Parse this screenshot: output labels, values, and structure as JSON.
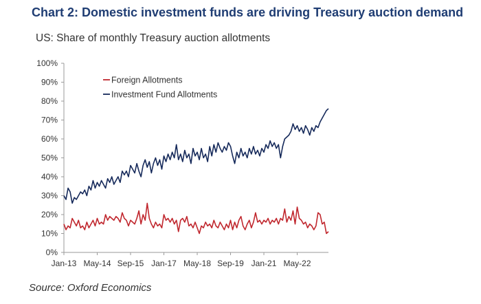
{
  "header": {
    "title": "Chart 2: Domestic investment funds are driving Treasury auction demand",
    "subtitle": "US: Share of monthly Treasury auction allotments"
  },
  "footer": {
    "source": "Source: Oxford Economics"
  },
  "colors": {
    "foreign": "#c0262d",
    "fund": "#15295a",
    "title": "#1f3d73"
  },
  "chart_data": {
    "type": "line",
    "title": "Chart 2: Domestic investment funds are driving Treasury auction demand",
    "subtitle": "US: Share of monthly Treasury auction allotments",
    "xlabel": "",
    "ylabel": "",
    "ylim": [
      0,
      100
    ],
    "y_ticks": [
      "0%",
      "10%",
      "20%",
      "30%",
      "40%",
      "50%",
      "60%",
      "70%",
      "80%",
      "90%",
      "100%"
    ],
    "x_ticks": [
      "Jan-13",
      "May-14",
      "Sep-15",
      "Jan-17",
      "May-18",
      "Sep-19",
      "Jan-21",
      "May-22"
    ],
    "legend_position": "top-left",
    "grid": false,
    "series": [
      {
        "name": "Foreign Allotments",
        "color": "#c0262d",
        "points": [
          [
            "2013-01",
            15
          ],
          [
            "2013-02",
            12
          ],
          [
            "2013-03",
            14
          ],
          [
            "2013-04",
            13
          ],
          [
            "2013-05",
            18
          ],
          [
            "2013-06",
            16
          ],
          [
            "2013-07",
            14
          ],
          [
            "2013-08",
            17
          ],
          [
            "2013-09",
            13
          ],
          [
            "2013-10",
            14
          ],
          [
            "2013-11",
            12
          ],
          [
            "2013-12",
            16
          ],
          [
            "2014-01",
            13
          ],
          [
            "2014-02",
            15
          ],
          [
            "2014-03",
            17
          ],
          [
            "2014-04",
            14
          ],
          [
            "2014-05",
            18
          ],
          [
            "2014-06",
            15
          ],
          [
            "2014-07",
            16
          ],
          [
            "2014-08",
            15
          ],
          [
            "2014-09",
            20
          ],
          [
            "2014-10",
            17
          ],
          [
            "2014-11",
            19
          ],
          [
            "2014-12",
            18
          ],
          [
            "2015-01",
            17
          ],
          [
            "2015-02",
            19
          ],
          [
            "2015-03",
            18
          ],
          [
            "2015-04",
            16
          ],
          [
            "2015-05",
            21
          ],
          [
            "2015-06",
            18
          ],
          [
            "2015-07",
            17
          ],
          [
            "2015-08",
            14
          ],
          [
            "2015-09",
            17
          ],
          [
            "2015-10",
            16
          ],
          [
            "2015-11",
            15
          ],
          [
            "2015-12",
            18
          ],
          [
            "2016-01",
            22
          ],
          [
            "2016-02",
            15
          ],
          [
            "2016-03",
            20
          ],
          [
            "2016-04",
            17
          ],
          [
            "2016-05",
            26
          ],
          [
            "2016-06",
            18
          ],
          [
            "2016-07",
            15
          ],
          [
            "2016-08",
            13
          ],
          [
            "2016-09",
            16
          ],
          [
            "2016-10",
            14
          ],
          [
            "2016-11",
            15
          ],
          [
            "2016-12",
            13
          ],
          [
            "2017-01",
            20
          ],
          [
            "2017-02",
            17
          ],
          [
            "2017-03",
            18
          ],
          [
            "2017-04",
            16
          ],
          [
            "2017-05",
            18
          ],
          [
            "2017-06",
            15
          ],
          [
            "2017-07",
            17
          ],
          [
            "2017-08",
            11
          ],
          [
            "2017-09",
            17
          ],
          [
            "2017-10",
            18
          ],
          [
            "2017-11",
            16
          ],
          [
            "2017-12",
            19
          ],
          [
            "2018-01",
            14
          ],
          [
            "2018-02",
            15
          ],
          [
            "2018-03",
            13
          ],
          [
            "2018-04",
            16
          ],
          [
            "2018-05",
            13
          ],
          [
            "2018-06",
            10
          ],
          [
            "2018-07",
            14
          ],
          [
            "2018-08",
            13
          ],
          [
            "2018-09",
            16
          ],
          [
            "2018-10",
            14
          ],
          [
            "2018-11",
            15
          ],
          [
            "2018-12",
            13
          ],
          [
            "2019-01",
            17
          ],
          [
            "2019-02",
            14
          ],
          [
            "2019-03",
            13
          ],
          [
            "2019-04",
            16
          ],
          [
            "2019-05",
            14
          ],
          [
            "2019-06",
            12
          ],
          [
            "2019-07",
            15
          ],
          [
            "2019-08",
            13
          ],
          [
            "2019-09",
            17
          ],
          [
            "2019-10",
            12
          ],
          [
            "2019-11",
            16
          ],
          [
            "2019-12",
            13
          ],
          [
            "2020-01",
            17
          ],
          [
            "2020-02",
            19
          ],
          [
            "2020-03",
            14
          ],
          [
            "2020-04",
            12
          ],
          [
            "2020-05",
            15
          ],
          [
            "2020-06",
            17
          ],
          [
            "2020-07",
            13
          ],
          [
            "2020-08",
            16
          ],
          [
            "2020-09",
            21
          ],
          [
            "2020-10",
            16
          ],
          [
            "2020-11",
            17
          ],
          [
            "2020-12",
            15
          ],
          [
            "2021-01",
            17
          ],
          [
            "2021-02",
            16
          ],
          [
            "2021-03",
            18
          ],
          [
            "2021-04",
            15
          ],
          [
            "2021-05",
            17
          ],
          [
            "2021-06",
            16
          ],
          [
            "2021-07",
            18
          ],
          [
            "2021-08",
            15
          ],
          [
            "2021-09",
            18
          ],
          [
            "2021-10",
            17
          ],
          [
            "2021-11",
            23
          ],
          [
            "2021-12",
            16
          ],
          [
            "2022-01",
            19
          ],
          [
            "2022-02",
            17
          ],
          [
            "2022-03",
            22
          ],
          [
            "2022-04",
            15
          ],
          [
            "2022-05",
            24
          ],
          [
            "2022-06",
            18
          ],
          [
            "2022-07",
            17
          ],
          [
            "2022-08",
            15
          ],
          [
            "2022-09",
            16
          ],
          [
            "2022-10",
            13
          ],
          [
            "2022-11",
            15
          ],
          [
            "2022-12",
            14
          ],
          [
            "2023-01",
            12
          ],
          [
            "2023-02",
            14
          ],
          [
            "2023-03",
            21
          ],
          [
            "2023-04",
            20
          ],
          [
            "2023-05",
            15
          ],
          [
            "2023-06",
            16
          ],
          [
            "2023-07",
            10
          ],
          [
            "2023-08",
            11
          ]
        ]
      },
      {
        "name": "Investment Fund Allotments",
        "color": "#15295a",
        "points": [
          [
            "2013-01",
            30
          ],
          [
            "2013-02",
            28
          ],
          [
            "2013-03",
            34
          ],
          [
            "2013-04",
            32
          ],
          [
            "2013-05",
            26
          ],
          [
            "2013-06",
            29
          ],
          [
            "2013-07",
            28
          ],
          [
            "2013-08",
            30
          ],
          [
            "2013-09",
            32
          ],
          [
            "2013-10",
            31
          ],
          [
            "2013-11",
            33
          ],
          [
            "2013-12",
            30
          ],
          [
            "2014-01",
            35
          ],
          [
            "2014-02",
            33
          ],
          [
            "2014-03",
            38
          ],
          [
            "2014-04",
            34
          ],
          [
            "2014-05",
            37
          ],
          [
            "2014-06",
            35
          ],
          [
            "2014-07",
            38
          ],
          [
            "2014-08",
            36
          ],
          [
            "2014-09",
            34
          ],
          [
            "2014-10",
            39
          ],
          [
            "2014-11",
            37
          ],
          [
            "2014-12",
            40
          ],
          [
            "2015-01",
            36
          ],
          [
            "2015-02",
            38
          ],
          [
            "2015-03",
            40
          ],
          [
            "2015-04",
            37
          ],
          [
            "2015-05",
            43
          ],
          [
            "2015-06",
            41
          ],
          [
            "2015-07",
            43
          ],
          [
            "2015-08",
            40
          ],
          [
            "2015-09",
            46
          ],
          [
            "2015-10",
            44
          ],
          [
            "2015-11",
            42
          ],
          [
            "2015-12",
            47
          ],
          [
            "2016-01",
            43
          ],
          [
            "2016-02",
            40
          ],
          [
            "2016-03",
            46
          ],
          [
            "2016-04",
            49
          ],
          [
            "2016-05",
            45
          ],
          [
            "2016-06",
            48
          ],
          [
            "2016-07",
            42
          ],
          [
            "2016-08",
            47
          ],
          [
            "2016-09",
            50
          ],
          [
            "2016-10",
            46
          ],
          [
            "2016-11",
            49
          ],
          [
            "2016-12",
            44
          ],
          [
            "2017-01",
            51
          ],
          [
            "2017-02",
            48
          ],
          [
            "2017-03",
            52
          ],
          [
            "2017-04",
            49
          ],
          [
            "2017-05",
            53
          ],
          [
            "2017-06",
            50
          ],
          [
            "2017-07",
            57
          ],
          [
            "2017-08",
            49
          ],
          [
            "2017-09",
            52
          ],
          [
            "2017-10",
            48
          ],
          [
            "2017-11",
            54
          ],
          [
            "2017-12",
            50
          ],
          [
            "2018-01",
            52
          ],
          [
            "2018-02",
            47
          ],
          [
            "2018-03",
            55
          ],
          [
            "2018-04",
            51
          ],
          [
            "2018-05",
            53
          ],
          [
            "2018-06",
            49
          ],
          [
            "2018-07",
            55
          ],
          [
            "2018-08",
            50
          ],
          [
            "2018-09",
            52
          ],
          [
            "2018-10",
            48
          ],
          [
            "2018-11",
            56
          ],
          [
            "2018-12",
            51
          ],
          [
            "2019-01",
            57
          ],
          [
            "2019-02",
            53
          ],
          [
            "2019-03",
            58
          ],
          [
            "2019-04",
            55
          ],
          [
            "2019-05",
            53
          ],
          [
            "2019-06",
            56
          ],
          [
            "2019-07",
            54
          ],
          [
            "2019-08",
            58
          ],
          [
            "2019-09",
            56
          ],
          [
            "2019-10",
            51
          ],
          [
            "2019-11",
            47
          ],
          [
            "2019-12",
            53
          ],
          [
            "2020-01",
            50
          ],
          [
            "2020-02",
            55
          ],
          [
            "2020-03",
            51
          ],
          [
            "2020-04",
            53
          ],
          [
            "2020-05",
            50
          ],
          [
            "2020-06",
            55
          ],
          [
            "2020-07",
            52
          ],
          [
            "2020-08",
            56
          ],
          [
            "2020-09",
            52
          ],
          [
            "2020-10",
            54
          ],
          [
            "2020-11",
            51
          ],
          [
            "2020-12",
            55
          ],
          [
            "2021-01",
            53
          ],
          [
            "2021-02",
            57
          ],
          [
            "2021-03",
            55
          ],
          [
            "2021-04",
            59
          ],
          [
            "2021-05",
            56
          ],
          [
            "2021-06",
            58
          ],
          [
            "2021-07",
            55
          ],
          [
            "2021-08",
            57
          ],
          [
            "2021-09",
            50
          ],
          [
            "2021-10",
            56
          ],
          [
            "2021-11",
            60
          ],
          [
            "2021-12",
            61
          ],
          [
            "2022-01",
            62
          ],
          [
            "2022-02",
            64
          ],
          [
            "2022-03",
            68
          ],
          [
            "2022-04",
            65
          ],
          [
            "2022-05",
            67
          ],
          [
            "2022-06",
            64
          ],
          [
            "2022-07",
            66
          ],
          [
            "2022-08",
            63
          ],
          [
            "2022-09",
            67
          ],
          [
            "2022-10",
            65
          ],
          [
            "2022-11",
            62
          ],
          [
            "2022-12",
            66
          ],
          [
            "2023-01",
            64
          ],
          [
            "2023-02",
            67
          ],
          [
            "2023-03",
            66
          ],
          [
            "2023-04",
            69
          ],
          [
            "2023-05",
            71
          ],
          [
            "2023-06",
            73
          ],
          [
            "2023-07",
            75
          ],
          [
            "2023-08",
            76
          ]
        ]
      }
    ]
  }
}
